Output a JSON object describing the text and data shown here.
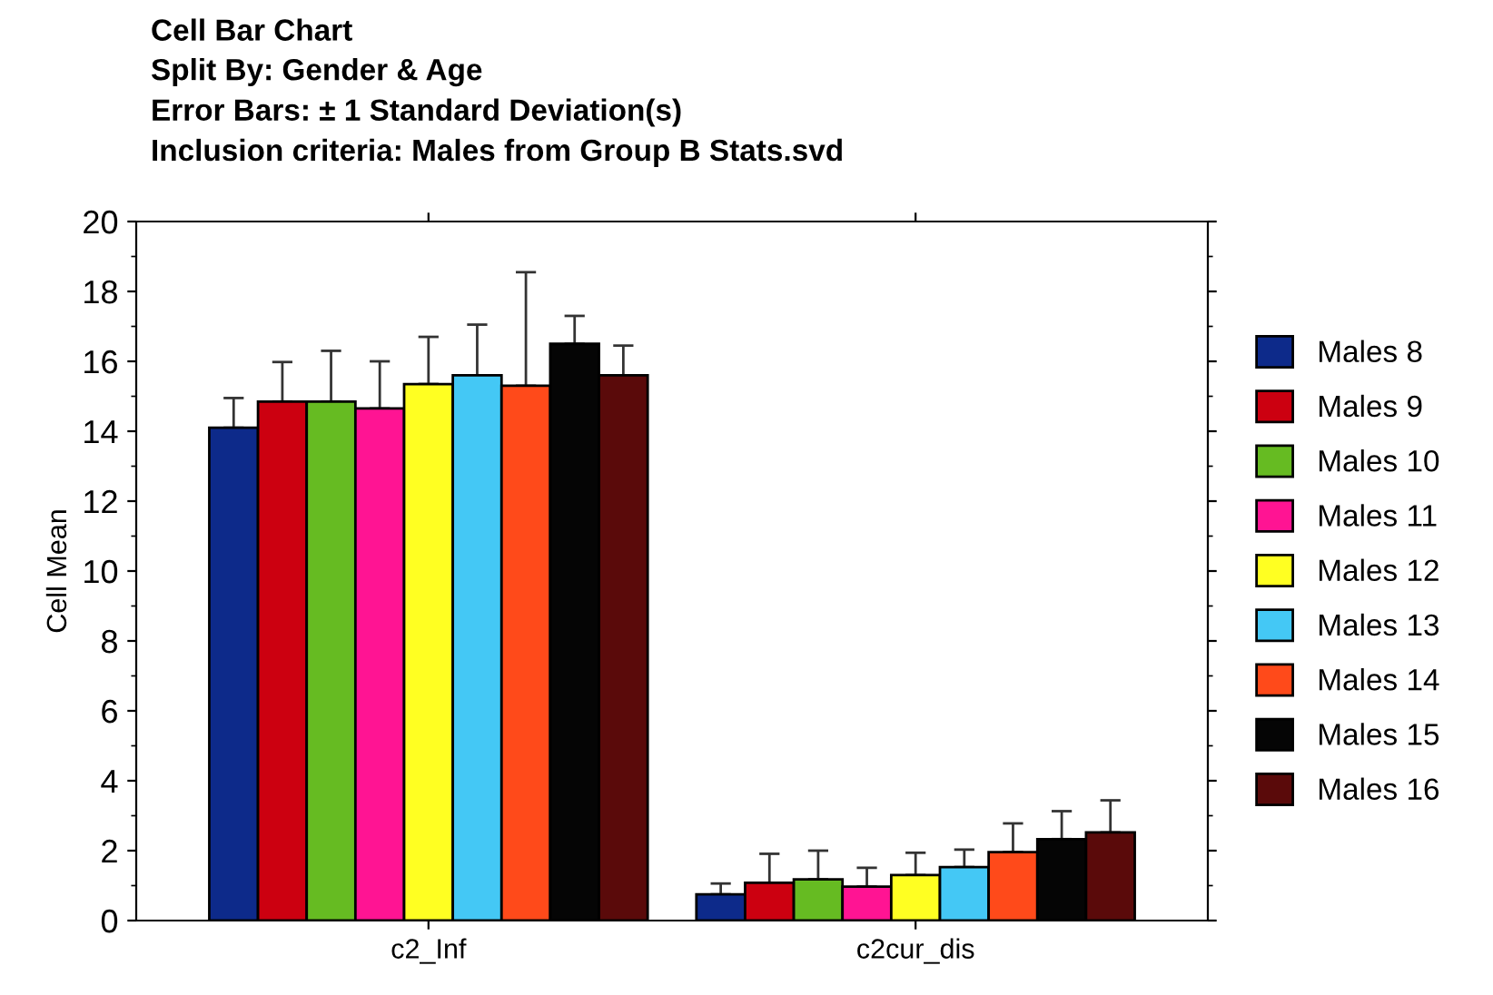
{
  "chart_data": {
    "type": "bar",
    "title": "Cell Bar Chart",
    "subtitle": "Split By: Gender & Age\nError Bars: ± 1 Standard Deviation(s)\nInclusion criteria: Males from Group B Stats.svd",
    "ylabel": "Cell Mean",
    "categories": [
      "c2_Inf",
      "c2cur_dis"
    ],
    "series": [
      {
        "name": "Males 8",
        "color": "#0d2a8a",
        "values": [
          14.1,
          0.75
        ],
        "errors": [
          [
            14.1,
            14.95
          ],
          [
            0.75,
            1.06
          ]
        ]
      },
      {
        "name": "Males 9",
        "color": "#cc0010",
        "values": [
          14.85,
          1.08
        ],
        "errors": [
          [
            14.85,
            15.98
          ],
          [
            1.08,
            1.91
          ]
        ]
      },
      {
        "name": "Males 10",
        "color": "#66bb22",
        "values": [
          14.85,
          1.18
        ],
        "errors": [
          [
            14.85,
            16.3
          ],
          [
            1.18,
            2.0
          ]
        ]
      },
      {
        "name": "Males 11",
        "color": "#ff1493",
        "values": [
          14.65,
          0.97
        ],
        "errors": [
          [
            14.65,
            16.0
          ],
          [
            0.97,
            1.51
          ]
        ]
      },
      {
        "name": "Males 12",
        "color": "#ffff22",
        "values": [
          15.35,
          1.3
        ],
        "errors": [
          [
            15.35,
            16.7
          ],
          [
            1.3,
            1.94
          ]
        ]
      },
      {
        "name": "Males 13",
        "color": "#44c8f5",
        "values": [
          15.6,
          1.53
        ],
        "errors": [
          [
            15.6,
            17.05
          ],
          [
            1.53,
            2.03
          ]
        ]
      },
      {
        "name": "Males 14",
        "color": "#ff4a1a",
        "values": [
          15.3,
          1.96
        ],
        "errors": [
          [
            15.3,
            18.55
          ],
          [
            1.96,
            2.78
          ]
        ]
      },
      {
        "name": "Males 15",
        "color": "#050505",
        "values": [
          16.5,
          2.33
        ],
        "errors": [
          [
            16.5,
            17.3
          ],
          [
            2.33,
            3.13
          ]
        ]
      },
      {
        "name": "Males 16",
        "color": "#5a0a0a",
        "values": [
          15.6,
          2.52
        ],
        "errors": [
          [
            15.6,
            16.45
          ],
          [
            2.52,
            3.44
          ]
        ]
      }
    ],
    "ylim": [
      0,
      20
    ],
    "yticks": [
      0,
      2,
      4,
      6,
      8,
      10,
      12,
      14,
      16,
      18,
      20
    ],
    "grid": false,
    "legend": "right"
  }
}
